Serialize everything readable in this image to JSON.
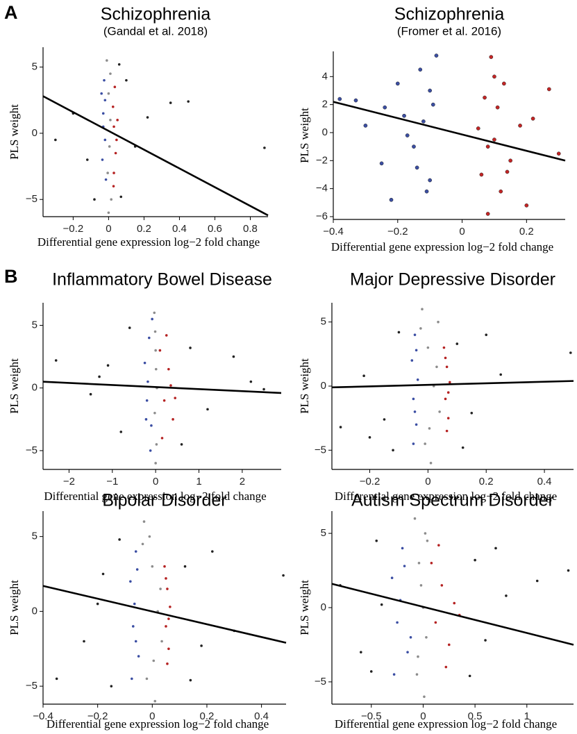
{
  "chart_data": [
    {
      "type": "scatter",
      "panel_label": "A",
      "title": "Schizophrenia",
      "subtitle": "(Gandal et al. 2018)",
      "xlabel": "Differential gene expression log−2 fold change",
      "ylabel": "PLS weight",
      "xlim": [
        -0.37,
        0.9
      ],
      "ylim": [
        -6.3,
        6.5
      ],
      "xticks": [
        {
          "value": -0.2,
          "label": "−0.2"
        },
        0,
        0.2,
        0.4,
        0.6,
        0.8
      ],
      "yticks": [
        {
          "value": -5,
          "label": "−5"
        },
        0,
        5
      ],
      "series": [
        {
          "color": "#3b4ea3",
          "x": [
            -0.04,
            -0.03,
            -0.02,
            -0.035,
            -0.025,
            -0.015,
            -0.03,
            -0.02
          ],
          "values": [
            3,
            1.5,
            -0.5,
            -2,
            4,
            -3.5,
            0.5,
            2.5
          ]
        },
        {
          "color": "#8c8c8c",
          "x": [
            -0.01,
            0,
            0.01,
            0.005,
            -0.005,
            0.015,
            0,
            0.01
          ],
          "values": [
            5.5,
            3,
            1,
            -1,
            -3,
            -5,
            -6,
            4.5
          ]
        },
        {
          "color": "#b52222",
          "x": [
            0.025,
            0.03,
            0.04,
            0.035,
            0.045,
            0.03,
            0.05,
            0.028
          ],
          "values": [
            2,
            0.5,
            -1.5,
            3.5,
            -0.5,
            -3,
            1,
            -4
          ]
        },
        {
          "color": "#222222",
          "x": [
            -0.3,
            -0.2,
            -0.12,
            0.1,
            0.15,
            0.22,
            0.35,
            0.45,
            0.88,
            -0.08,
            0.07,
            0.06
          ],
          "values": [
            -0.5,
            1.5,
            -2,
            4,
            -1,
            1.2,
            2.3,
            2.4,
            -1.1,
            -5,
            -4.8,
            5.2
          ]
        }
      ],
      "fit": {
        "color": "#000000",
        "x": [
          -0.37,
          0.9
        ],
        "values": [
          2.8,
          -6.2
        ]
      }
    },
    {
      "type": "scatter",
      "title": "Schizophrenia",
      "subtitle": "(Fromer et al. 2016)",
      "xlabel": "Differential gene expression log−2 fold change",
      "ylabel": "PLS weight",
      "xlim": [
        -0.4,
        0.32
      ],
      "ylim": [
        -6.2,
        5.8
      ],
      "xticks": [
        {
          "value": -0.4,
          "label": "−0.4"
        },
        {
          "value": -0.2,
          "label": "−0.2"
        },
        0,
        0.2
      ],
      "yticks": [
        {
          "value": -6,
          "label": "−6"
        },
        {
          "value": -4,
          "label": "−4"
        },
        {
          "value": -2,
          "label": "−2"
        },
        0,
        2,
        4
      ],
      "series": [
        {
          "color": "#3b4ea3",
          "x": [
            -0.38,
            -0.33,
            -0.3,
            -0.25,
            -0.22,
            -0.2,
            -0.18,
            -0.15,
            -0.13,
            -0.12,
            -0.1,
            -0.09,
            -0.08,
            -0.14,
            -0.17,
            -0.11,
            -0.24,
            -0.1
          ],
          "values": [
            2.4,
            2.3,
            0.5,
            -2.2,
            -4.8,
            3.5,
            1.2,
            -1,
            4.5,
            0.8,
            -3.4,
            2,
            5.5,
            -2.5,
            -0.2,
            -4.2,
            1.8,
            3
          ]
        },
        {
          "color": "#c42525",
          "x": [
            0.05,
            0.06,
            0.07,
            0.08,
            0.09,
            0.1,
            0.11,
            0.12,
            0.13,
            0.15,
            0.18,
            0.2,
            0.22,
            0.27,
            0.3,
            0.08,
            0.1,
            0.14
          ],
          "values": [
            0.3,
            -3,
            2.5,
            -1,
            5.4,
            -0.5,
            1.8,
            -4.2,
            3.5,
            -2,
            0.5,
            -5.2,
            1,
            3.1,
            -1.5,
            -5.8,
            4,
            -2.8
          ]
        }
      ],
      "fit": {
        "color": "#000000",
        "x": [
          -0.4,
          0.32
        ],
        "values": [
          2.2,
          -2
        ]
      }
    },
    {
      "type": "scatter",
      "panel_label": "B",
      "title": "Inflammatory Bowel Disease",
      "xlabel": "Differential gene expression log−2 fold change",
      "ylabel": "PLS weight",
      "xlim": [
        -2.6,
        2.9
      ],
      "ylim": [
        -6.5,
        6.8
      ],
      "xticks": [
        {
          "value": -2,
          "label": "−2"
        },
        {
          "value": -1,
          "label": "−1"
        },
        0,
        1,
        2
      ],
      "yticks": [
        {
          "value": -5,
          "label": "−5"
        },
        0,
        5
      ],
      "series": [
        {
          "color": "#3b4ea3",
          "x": [
            -0.25,
            -0.2,
            -0.15,
            -0.1,
            -0.18,
            -0.12,
            -0.22,
            -0.08
          ],
          "values": [
            2,
            -1,
            4,
            -3,
            0.5,
            -5,
            -2.5,
            5.5
          ]
        },
        {
          "color": "#8c8c8c",
          "x": [
            -0.03,
            0,
            0.03,
            -0.02,
            0.02,
            0,
            0.01,
            -0.01
          ],
          "values": [
            6,
            3,
            0,
            -2,
            -4.5,
            -6,
            1.5,
            4.5
          ]
        },
        {
          "color": "#b52222",
          "x": [
            0.1,
            0.2,
            0.3,
            0.4,
            0.15,
            0.25,
            0.35,
            0.45
          ],
          "values": [
            3,
            -1,
            1.5,
            -2.5,
            -4,
            4.2,
            0.2,
            -0.8
          ]
        },
        {
          "color": "#222222",
          "x": [
            -2.3,
            -1.5,
            -1.1,
            -0.8,
            0.8,
            1.2,
            1.8,
            2.5,
            -0.6,
            0.6,
            2.2,
            -1.3
          ],
          "values": [
            2.2,
            -0.5,
            1.8,
            -3.5,
            3.2,
            -1.7,
            2.5,
            -0.1,
            4.8,
            -4.5,
            0.5,
            0.9
          ]
        }
      ],
      "fit": {
        "color": "#000000",
        "x": [
          -2.6,
          2.9
        ],
        "values": [
          0.5,
          -0.4
        ]
      }
    },
    {
      "type": "scatter",
      "title": "Major Depressive Disorder",
      "xlabel": "Differential gene expression log−2 fold change",
      "ylabel": "PLS weight",
      "xlim": [
        -0.33,
        0.5
      ],
      "ylim": [
        -6.5,
        6.5
      ],
      "xticks": [
        {
          "value": -0.2,
          "label": "−0.2"
        },
        0,
        0.2,
        0.4
      ],
      "yticks": [
        {
          "value": -5,
          "label": "−5"
        },
        0,
        5
      ],
      "series": [
        {
          "color": "#3b4ea3",
          "x": [
            -0.055,
            -0.05,
            -0.045,
            -0.04,
            -0.035,
            -0.05,
            -0.04,
            -0.045
          ],
          "values": [
            2,
            -1,
            4,
            -3,
            0.5,
            -4.5,
            2.8,
            -2
          ]
        },
        {
          "color": "#8c8c8c",
          "x": [
            -0.02,
            0,
            0.02,
            0.04,
            -0.01,
            0.01,
            0.03,
            -0.025,
            0.005,
            0.035
          ],
          "values": [
            6,
            3,
            0,
            -2,
            -4.5,
            -6,
            1.5,
            4.5,
            -3.3,
            5
          ]
        },
        {
          "color": "#b52222",
          "x": [
            0.055,
            0.06,
            0.065,
            0.07,
            0.075,
            0.06,
            0.07,
            0.065
          ],
          "values": [
            3,
            -1,
            1.5,
            -2.5,
            0.3,
            2.2,
            -0.5,
            -3.5
          ]
        },
        {
          "color": "#222222",
          "x": [
            -0.3,
            -0.22,
            -0.15,
            -0.1,
            0.1,
            0.15,
            0.25,
            0.49,
            -0.12,
            0.12,
            -0.2,
            0.2
          ],
          "values": [
            -3.2,
            0.8,
            -2.6,
            4.2,
            3.3,
            -2.1,
            0.9,
            2.6,
            -5,
            -4.8,
            -4,
            4
          ]
        }
      ],
      "fit": {
        "color": "#000000",
        "x": [
          -0.33,
          0.5
        ],
        "values": [
          -0.1,
          0.4
        ]
      }
    },
    {
      "type": "scatter",
      "title": "Bipolar Disorder",
      "xlabel": "Differential gene expression log−2 fold change",
      "ylabel": "PLS weight",
      "xlim": [
        -0.4,
        0.49
      ],
      "ylim": [
        -6.2,
        6.7
      ],
      "xticks": [
        {
          "value": -0.4,
          "label": "−0.4"
        },
        {
          "value": -0.2,
          "label": "−0.2"
        },
        0,
        0.2,
        0.4
      ],
      "yticks": [
        {
          "value": -5,
          "label": "−5"
        },
        0,
        5
      ],
      "series": [
        {
          "color": "#3b4ea3",
          "x": [
            -0.08,
            -0.07,
            -0.06,
            -0.05,
            -0.065,
            -0.075,
            -0.055,
            -0.06
          ],
          "values": [
            2,
            -1,
            4,
            -3,
            0.5,
            -4.5,
            2.8,
            -2
          ]
        },
        {
          "color": "#8c8c8c",
          "x": [
            -0.03,
            0,
            0.02,
            0.035,
            -0.02,
            0.01,
            0.03,
            -0.035,
            0.005,
            -0.01
          ],
          "values": [
            6,
            3,
            0,
            -2,
            -4.5,
            -6,
            1.5,
            4.5,
            -3.3,
            5
          ]
        },
        {
          "color": "#b52222",
          "x": [
            0.045,
            0.05,
            0.055,
            0.06,
            0.065,
            0.05,
            0.06,
            0.055
          ],
          "values": [
            3,
            -1,
            1.5,
            -2.5,
            0.3,
            2.2,
            -0.5,
            -3.5
          ]
        },
        {
          "color": "#222222",
          "x": [
            -0.35,
            -0.25,
            -0.18,
            -0.12,
            0.12,
            0.18,
            0.3,
            0.48,
            -0.15,
            0.14,
            -0.2,
            0.22
          ],
          "values": [
            -4.5,
            -2,
            2.5,
            4.8,
            3,
            -2.3,
            -1.3,
            2.4,
            -5,
            -4.6,
            0.5,
            4
          ]
        }
      ],
      "fit": {
        "color": "#000000",
        "x": [
          -0.4,
          0.49
        ],
        "values": [
          1.7,
          -2.1
        ]
      }
    },
    {
      "type": "scatter",
      "title": "Autism Spectrum Disorder",
      "xlabel": "Differential gene expression log−2 fold change",
      "ylabel": "PLS weight",
      "xlim": [
        -0.88,
        1.45
      ],
      "ylim": [
        -6.5,
        6.5
      ],
      "xticks": [
        {
          "value": -0.5,
          "label": "−0.5"
        },
        0,
        0.5,
        1
      ],
      "yticks": [
        {
          "value": -5,
          "label": "−5"
        },
        0,
        5
      ],
      "series": [
        {
          "color": "#3b4ea3",
          "x": [
            -0.3,
            -0.25,
            -0.2,
            -0.15,
            -0.22,
            -0.28,
            -0.18,
            -0.12
          ],
          "values": [
            2,
            -1,
            4,
            -3,
            0.5,
            -4.5,
            2.8,
            -2
          ]
        },
        {
          "color": "#8c8c8c",
          "x": [
            -0.08,
            -0.04,
            0,
            0.03,
            -0.06,
            0.01,
            -0.02,
            0.04,
            -0.05,
            0.02
          ],
          "values": [
            6,
            3,
            0,
            -2,
            -4.5,
            -6,
            1.5,
            4.5,
            -3.3,
            5
          ]
        },
        {
          "color": "#b52222",
          "x": [
            0.08,
            0.12,
            0.18,
            0.25,
            0.3,
            0.15,
            0.35,
            0.22
          ],
          "values": [
            3,
            -1,
            1.5,
            -2.5,
            0.3,
            4.2,
            -0.5,
            -4
          ]
        },
        {
          "color": "#222222",
          "x": [
            -0.8,
            -0.6,
            -0.45,
            0.5,
            0.6,
            0.8,
            1.1,
            1.4,
            -0.5,
            0.45,
            -0.4,
            0.7
          ],
          "values": [
            1.5,
            -3,
            4.5,
            3.2,
            -2.2,
            0.8,
            1.8,
            2.5,
            -4.3,
            -4.6,
            0.2,
            4
          ]
        }
      ],
      "fit": {
        "color": "#000000",
        "x": [
          -0.88,
          1.45
        ],
        "values": [
          1.6,
          -2.5
        ]
      }
    }
  ]
}
